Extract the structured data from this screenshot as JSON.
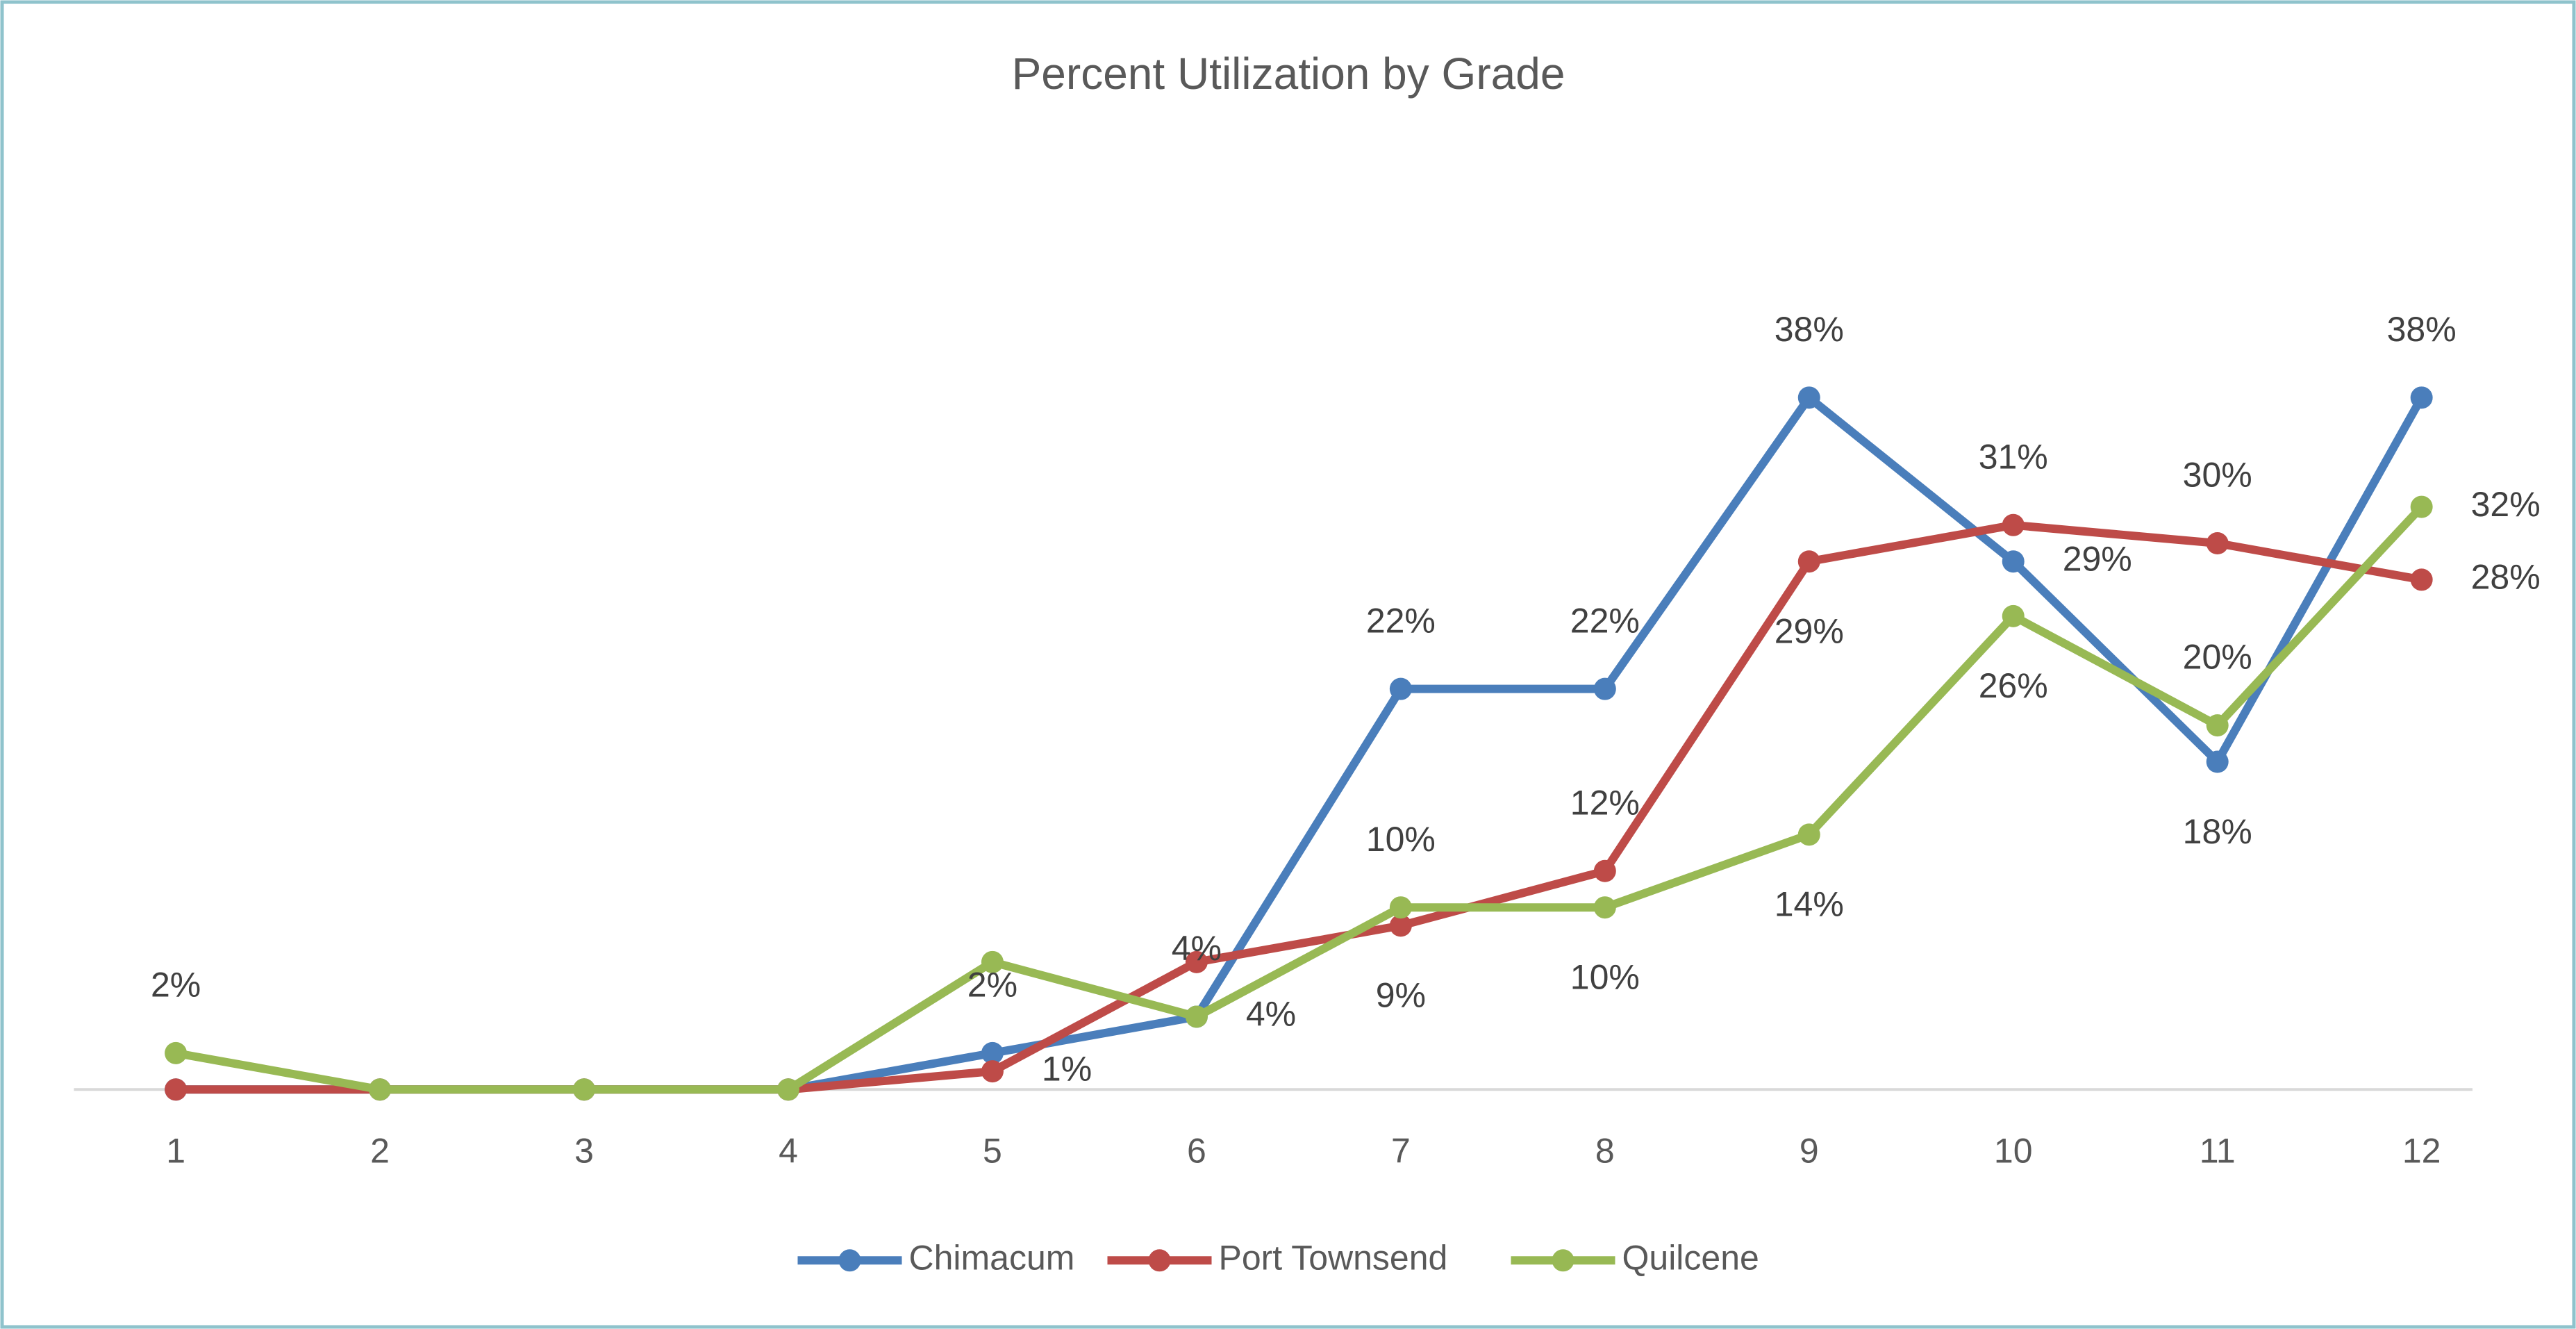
{
  "chart_data": {
    "type": "line",
    "title": "Percent Utilization by Grade",
    "categories": [
      "1",
      "2",
      "3",
      "4",
      "5",
      "6",
      "7",
      "8",
      "9",
      "10",
      "11",
      "12"
    ],
    "series": [
      {
        "name": "Chimacum",
        "color": "#4a7ebb",
        "values": [
          0,
          0,
          0,
          0,
          2,
          4,
          22,
          22,
          38,
          29,
          18,
          38
        ],
        "value_labels": [
          null,
          null,
          null,
          null,
          "2%",
          "4%",
          "22%",
          "22%",
          "38%",
          "29%",
          "18%",
          "38%"
        ]
      },
      {
        "name": "Port Townsend",
        "color": "#be4b48",
        "values": [
          0,
          0,
          0,
          0,
          1,
          7,
          9,
          12,
          29,
          31,
          30,
          28
        ],
        "value_labels": [
          null,
          null,
          null,
          null,
          "1%",
          null,
          "9%",
          "12%",
          "29%",
          "31%",
          "30%",
          "28%"
        ]
      },
      {
        "name": "Quilcene",
        "color": "#98b954",
        "values": [
          2,
          0,
          0,
          0,
          7,
          4,
          10,
          10,
          14,
          26,
          20,
          32
        ],
        "value_labels": [
          "2%",
          null,
          null,
          null,
          null,
          "4%",
          "10%",
          "10%",
          "14%",
          "26%",
          "20%",
          "32%"
        ]
      }
    ],
    "ylim": [
      0,
      50
    ],
    "legend": "bottom",
    "grid": false
  }
}
